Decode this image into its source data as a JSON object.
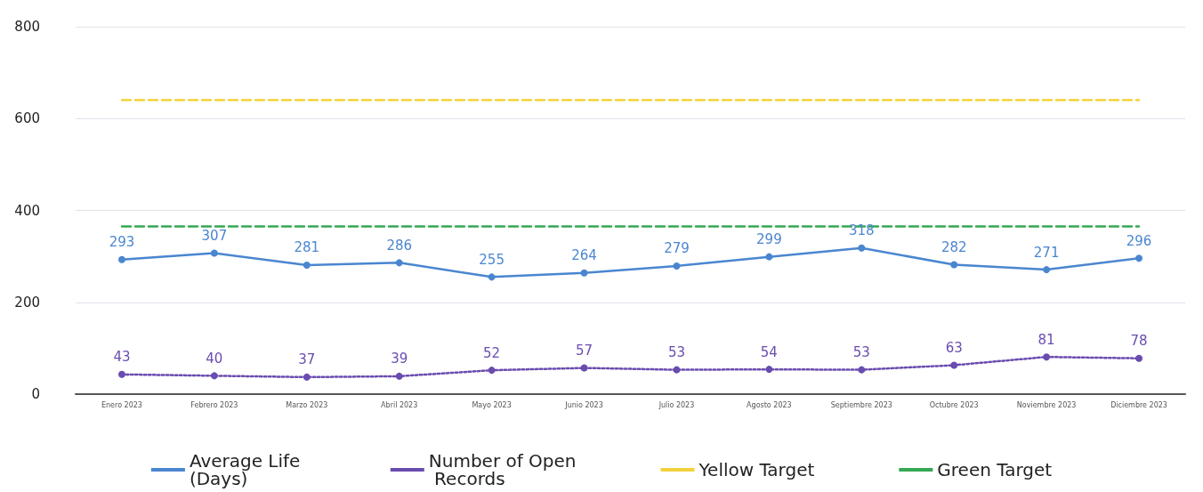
{
  "chart_data": {
    "type": "line",
    "categories": [
      "Enero 2023",
      "Febrero 2023",
      "Marzo 2023",
      "Abril 2023",
      "Mayo 2023",
      "Junio 2023",
      "Julio 2023",
      "Agosto 2023",
      "Septiembre 2023",
      "Octubre 2023",
      "Noviembre 2023",
      "Diciembre 2023"
    ],
    "series": [
      {
        "name": "Average Life (Days)",
        "color": "#4a86d0",
        "values": [
          293,
          307,
          281,
          286,
          255,
          264,
          279,
          299,
          318,
          282,
          271,
          296
        ],
        "marker": "circle",
        "line_style": "solid",
        "data_labels": true
      },
      {
        "name": "Number of Open Records",
        "color": "#6a4cb0",
        "values": [
          43,
          40,
          37,
          39,
          52,
          57,
          53,
          54,
          53,
          63,
          81,
          78
        ],
        "marker": "circle",
        "line_style": "dotted",
        "data_labels": true
      },
      {
        "name": "Yellow Target",
        "color": "#f2d23c",
        "values": [
          640,
          640,
          640,
          640,
          640,
          640,
          640,
          640,
          640,
          640,
          640,
          640
        ],
        "marker": "none",
        "line_style": "dashed"
      },
      {
        "name": "Green Target",
        "color": "#34a853",
        "values": [
          365,
          365,
          365,
          365,
          365,
          365,
          365,
          365,
          365,
          365,
          365,
          365
        ],
        "marker": "none",
        "line_style": "dashed"
      }
    ],
    "ylim": [
      0,
      800
    ],
    "yticks": [
      0,
      200,
      400,
      600,
      800
    ],
    "grid": "y",
    "legend": "bottom"
  }
}
